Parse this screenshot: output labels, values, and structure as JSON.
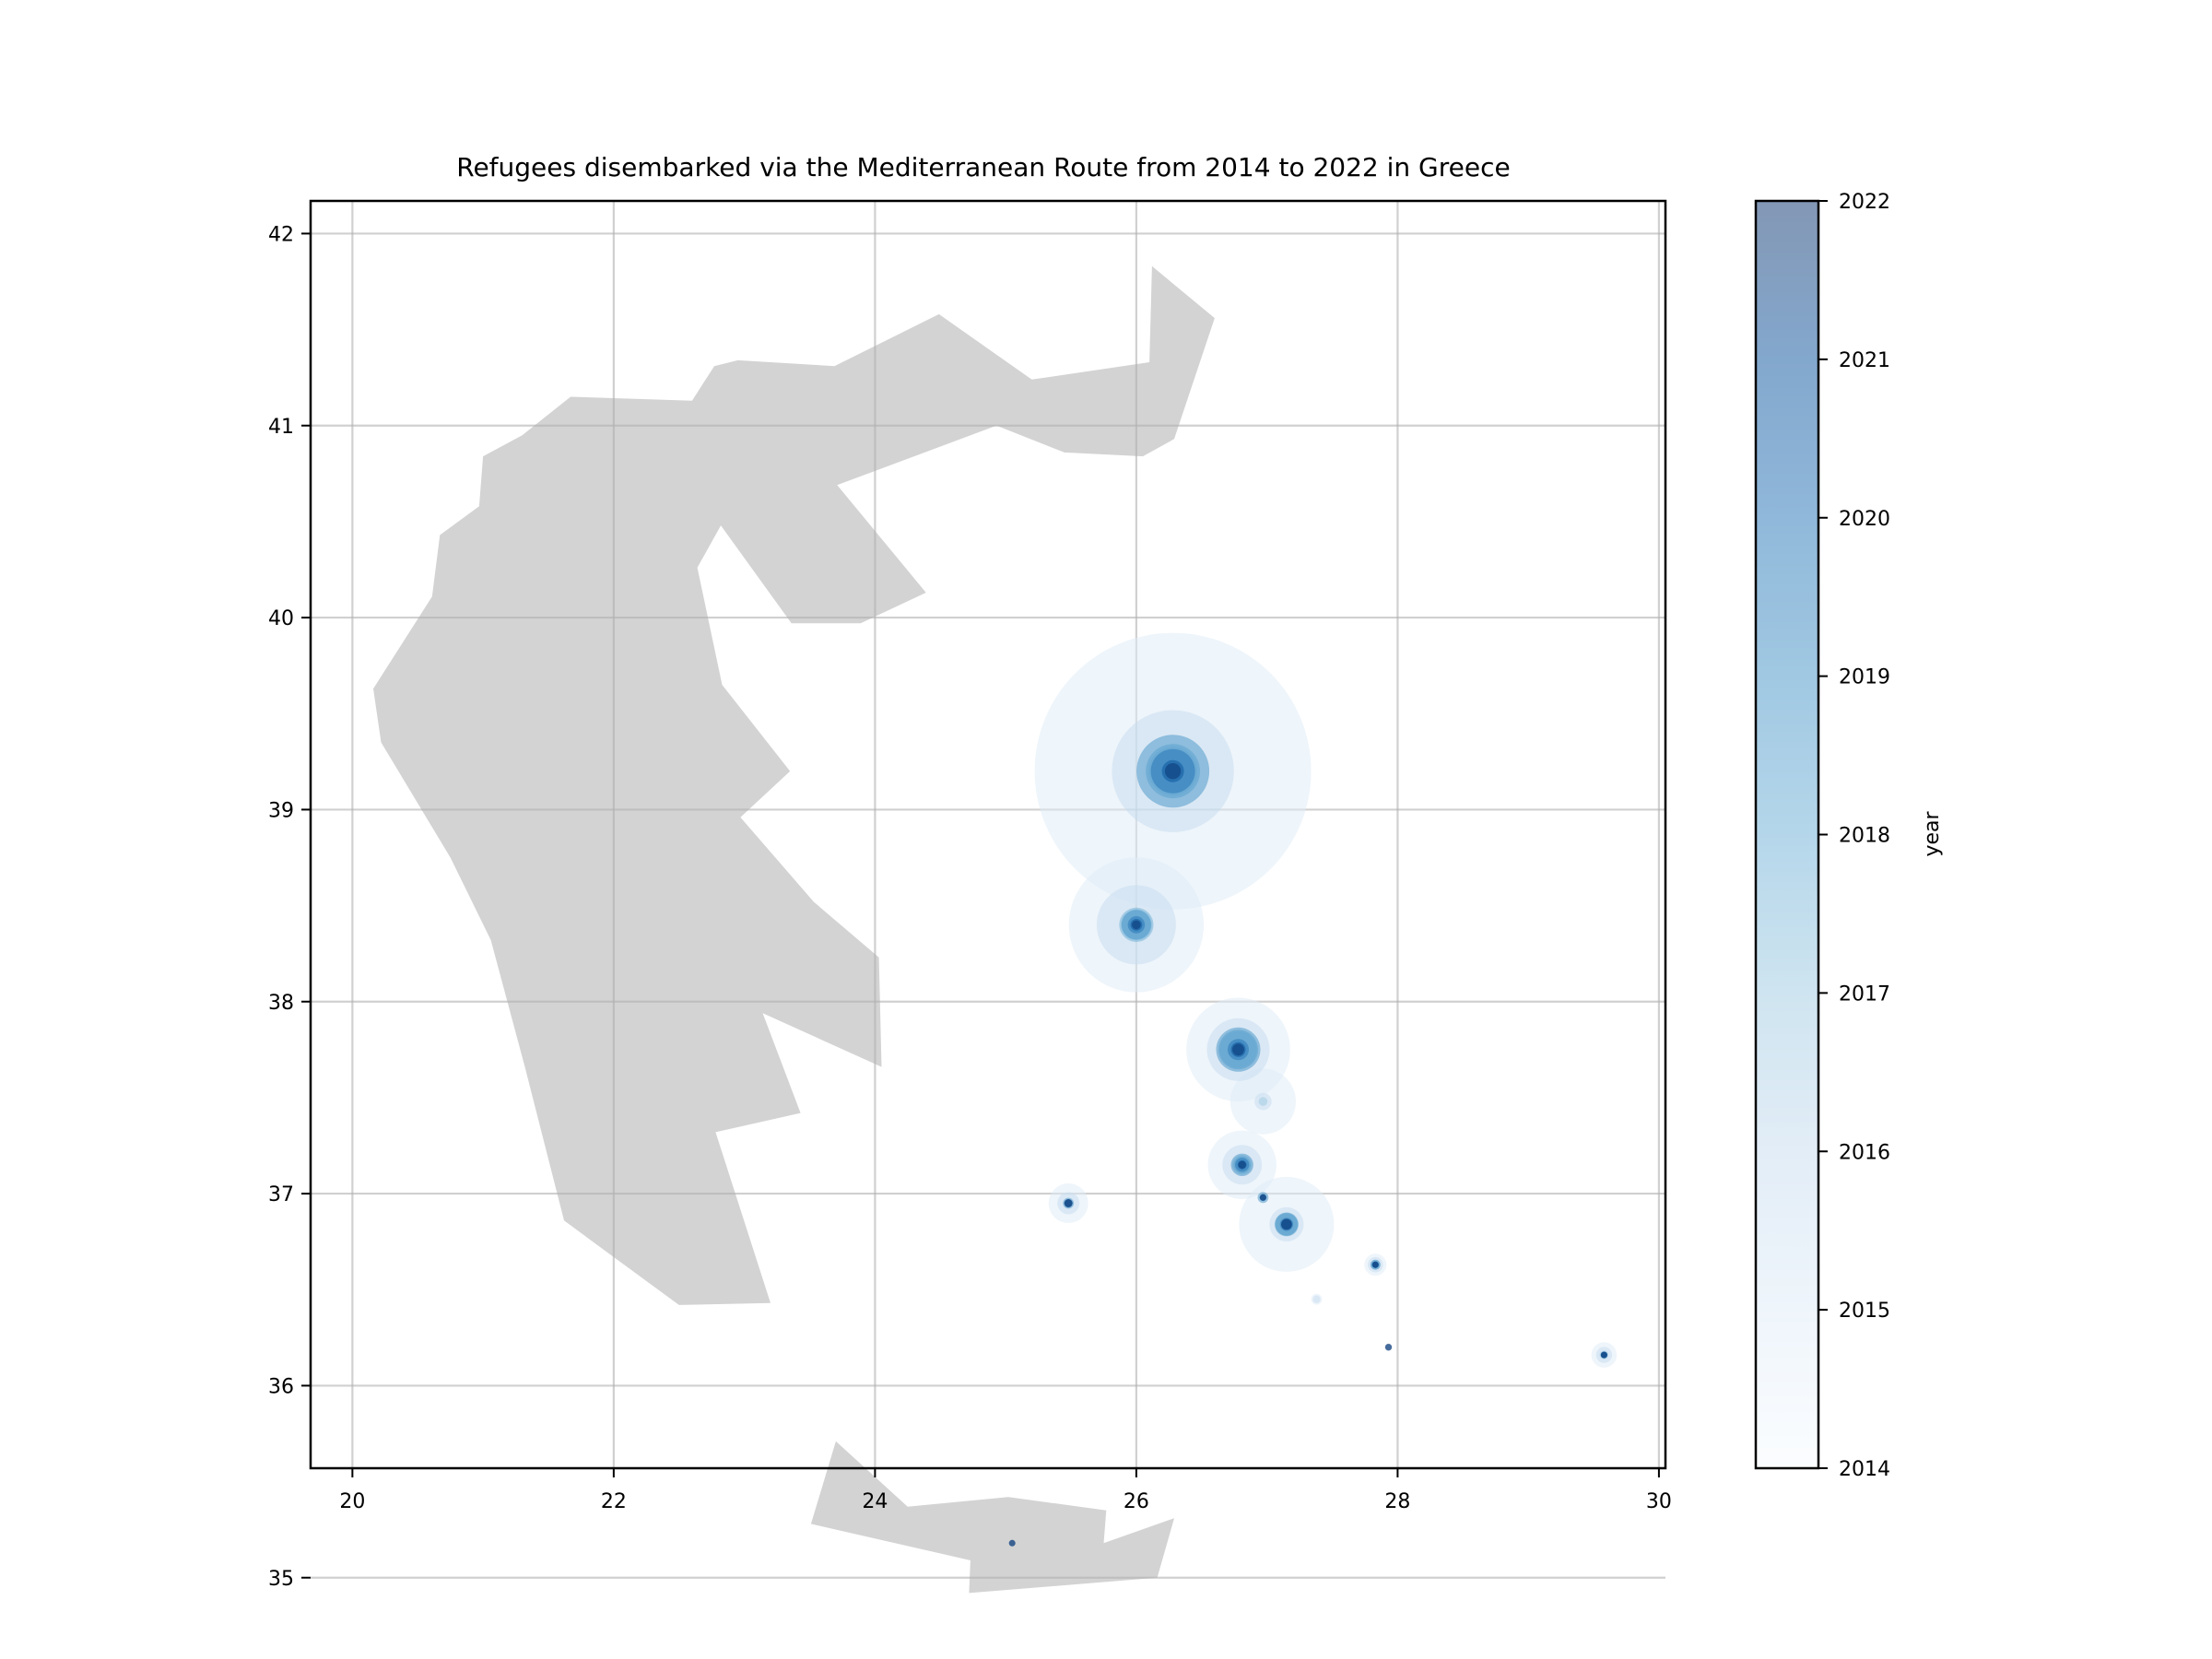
{
  "chart_data": {
    "type": "scatter",
    "title": "Refugees disembarked via the Mediterranean Route from 2014 to 2022 in Greece",
    "xlabel": "",
    "ylabel": "",
    "xlim": [
      19.68,
      30.05
    ],
    "ylim": [
      35.57,
      42.17
    ],
    "xticks": [
      20,
      22,
      24,
      26,
      28,
      30
    ],
    "yticks": [
      35,
      36,
      37,
      38,
      39,
      40,
      41,
      42
    ],
    "grid": true,
    "colorbar": {
      "label": "year",
      "range": [
        2014,
        2022
      ],
      "ticks": [
        2014,
        2015,
        2016,
        2017,
        2018,
        2019,
        2020,
        2021,
        2022
      ],
      "colormap": "Blues",
      "alpha": 0.5
    },
    "land_color": "#d3d3d3",
    "land": [
      [
        [
          20.16,
          39.63
        ],
        [
          20.22,
          39.35
        ],
        [
          20.75,
          38.75
        ],
        [
          21.06,
          38.32
        ],
        [
          21.32,
          37.66
        ],
        [
          21.62,
          36.86
        ],
        [
          22.5,
          36.42
        ],
        [
          23.2,
          36.43
        ],
        [
          22.78,
          37.32
        ],
        [
          23.43,
          37.42
        ],
        [
          23.14,
          37.94
        ],
        [
          24.05,
          37.66
        ],
        [
          24.03,
          38.23
        ],
        [
          23.53,
          38.52
        ],
        [
          22.97,
          38.96
        ],
        [
          23.35,
          39.2
        ],
        [
          22.83,
          39.65
        ],
        [
          22.64,
          40.26
        ],
        [
          22.82,
          40.48
        ],
        [
          23.36,
          39.97
        ],
        [
          23.89,
          39.97
        ],
        [
          24.39,
          40.13
        ],
        [
          23.71,
          40.69
        ],
        [
          24.93,
          41.0
        ],
        [
          25.45,
          40.86
        ],
        [
          26.05,
          40.84
        ],
        [
          26.29,
          40.93
        ],
        [
          26.6,
          41.56
        ],
        [
          26.12,
          41.83
        ],
        [
          26.1,
          41.33
        ],
        [
          25.2,
          41.24
        ],
        [
          24.49,
          41.58
        ],
        [
          23.69,
          41.31
        ],
        [
          22.95,
          41.34
        ],
        [
          22.77,
          41.31
        ],
        [
          22.6,
          41.13
        ],
        [
          21.67,
          41.15
        ],
        [
          21.3,
          40.95
        ],
        [
          21.0,
          40.84
        ],
        [
          20.97,
          40.58
        ],
        [
          20.67,
          40.43
        ],
        [
          20.61,
          40.11
        ],
        [
          20.16,
          39.63
        ]
      ],
      [
        [
          23.7,
          35.71
        ],
        [
          24.25,
          35.37
        ],
        [
          25.02,
          35.42
        ],
        [
          25.77,
          35.35
        ],
        [
          25.75,
          35.18
        ],
        [
          26.29,
          35.31
        ],
        [
          26.16,
          35.0
        ],
        [
          24.72,
          34.92
        ],
        [
          24.73,
          35.09
        ],
        [
          23.51,
          35.28
        ],
        [
          23.7,
          35.71
        ]
      ]
    ],
    "series": [
      {
        "year": 2015,
        "points": [
          {
            "x": 26.28,
            "y": 39.2,
            "value": 390000
          },
          {
            "x": 26.0,
            "y": 38.4,
            "value": 93000
          },
          {
            "x": 26.78,
            "y": 37.75,
            "value": 55000
          },
          {
            "x": 26.97,
            "y": 37.48,
            "value": 22000
          },
          {
            "x": 26.81,
            "y": 37.15,
            "value": 24000
          },
          {
            "x": 27.15,
            "y": 36.84,
            "value": 46000
          },
          {
            "x": 25.48,
            "y": 36.95,
            "value": 8000
          },
          {
            "x": 27.83,
            "y": 36.63,
            "value": 2500
          },
          {
            "x": 29.58,
            "y": 36.16,
            "value": 3300
          },
          {
            "x": 27.38,
            "y": 36.45,
            "value": 600
          }
        ]
      },
      {
        "year": 2016,
        "points": [
          {
            "x": 26.28,
            "y": 39.2,
            "value": 76000
          },
          {
            "x": 26.0,
            "y": 38.4,
            "value": 32000
          },
          {
            "x": 26.78,
            "y": 37.75,
            "value": 20000
          },
          {
            "x": 26.97,
            "y": 37.48,
            "value": 1500
          },
          {
            "x": 26.81,
            "y": 37.15,
            "value": 8000
          },
          {
            "x": 27.15,
            "y": 36.84,
            "value": 6000
          },
          {
            "x": 25.48,
            "y": 36.95,
            "value": 2500
          },
          {
            "x": 27.83,
            "y": 36.63,
            "value": 1200
          },
          {
            "x": 29.58,
            "y": 36.16,
            "value": 1300
          },
          {
            "x": 27.38,
            "y": 36.45,
            "value": 300
          }
        ]
      },
      {
        "year": 2017,
        "points": [
          {
            "x": 26.28,
            "y": 39.2,
            "value": 12000
          },
          {
            "x": 26.0,
            "y": 38.4,
            "value": 5000
          },
          {
            "x": 26.78,
            "y": 37.75,
            "value": 7000
          },
          {
            "x": 26.97,
            "y": 37.48,
            "value": 400
          },
          {
            "x": 26.81,
            "y": 37.15,
            "value": 2000
          },
          {
            "x": 27.15,
            "y": 36.84,
            "value": 3000
          },
          {
            "x": 27.83,
            "y": 36.63,
            "value": 500
          },
          {
            "x": 29.58,
            "y": 36.16,
            "value": 400
          }
        ]
      },
      {
        "year": 2018,
        "points": [
          {
            "x": 26.28,
            "y": 39.2,
            "value": 15000
          },
          {
            "x": 26.0,
            "y": 38.4,
            "value": 6000
          },
          {
            "x": 26.78,
            "y": 37.75,
            "value": 8000
          },
          {
            "x": 26.81,
            "y": 37.15,
            "value": 1500
          },
          {
            "x": 27.15,
            "y": 36.84,
            "value": 2500
          },
          {
            "x": 27.83,
            "y": 36.63,
            "value": 300
          },
          {
            "x": 29.58,
            "y": 36.16,
            "value": 250
          }
        ]
      },
      {
        "year": 2019,
        "points": [
          {
            "x": 26.28,
            "y": 39.2,
            "value": 27000
          },
          {
            "x": 26.0,
            "y": 38.4,
            "value": 4500
          },
          {
            "x": 26.78,
            "y": 37.75,
            "value": 10000
          },
          {
            "x": 26.81,
            "y": 37.15,
            "value": 2600
          },
          {
            "x": 27.15,
            "y": 36.84,
            "value": 2800
          },
          {
            "x": 26.97,
            "y": 36.98,
            "value": 600
          },
          {
            "x": 27.83,
            "y": 36.63,
            "value": 500
          },
          {
            "x": 25.48,
            "y": 36.95,
            "value": 600
          },
          {
            "x": 29.58,
            "y": 36.16,
            "value": 200
          }
        ]
      },
      {
        "year": 2020,
        "points": [
          {
            "x": 26.28,
            "y": 39.2,
            "value": 10000
          },
          {
            "x": 26.0,
            "y": 38.4,
            "value": 1500
          },
          {
            "x": 26.78,
            "y": 37.75,
            "value": 2300
          },
          {
            "x": 26.81,
            "y": 37.15,
            "value": 1000
          },
          {
            "x": 27.15,
            "y": 36.84,
            "value": 900
          },
          {
            "x": 26.97,
            "y": 36.98,
            "value": 250
          },
          {
            "x": 27.83,
            "y": 36.63,
            "value": 150
          },
          {
            "x": 25.48,
            "y": 36.95,
            "value": 350
          },
          {
            "x": 29.58,
            "y": 36.16,
            "value": 120
          }
        ]
      },
      {
        "year": 2021,
        "points": [
          {
            "x": 26.28,
            "y": 39.2,
            "value": 2500
          },
          {
            "x": 26.0,
            "y": 38.4,
            "value": 700
          },
          {
            "x": 26.78,
            "y": 37.75,
            "value": 1100
          },
          {
            "x": 26.81,
            "y": 37.15,
            "value": 420
          },
          {
            "x": 27.15,
            "y": 36.84,
            "value": 600
          },
          {
            "x": 26.97,
            "y": 36.98,
            "value": 120
          },
          {
            "x": 27.83,
            "y": 36.63,
            "value": 80
          },
          {
            "x": 25.48,
            "y": 36.95,
            "value": 300
          },
          {
            "x": 29.58,
            "y": 36.16,
            "value": 70
          },
          {
            "x": 27.93,
            "y": 36.2,
            "value": 100
          },
          {
            "x": 25.05,
            "y": 35.18,
            "value": 80
          }
        ]
      },
      {
        "year": 2022,
        "points": [
          {
            "x": 26.28,
            "y": 39.2,
            "value": 1300
          },
          {
            "x": 26.0,
            "y": 38.4,
            "value": 400
          },
          {
            "x": 26.78,
            "y": 37.75,
            "value": 700
          },
          {
            "x": 26.81,
            "y": 37.15,
            "value": 300
          },
          {
            "x": 27.15,
            "y": 36.84,
            "value": 600
          },
          {
            "x": 26.97,
            "y": 36.98,
            "value": 90
          },
          {
            "x": 27.83,
            "y": 36.63,
            "value": 30
          },
          {
            "x": 25.48,
            "y": 36.95,
            "value": 350
          },
          {
            "x": 29.58,
            "y": 36.16,
            "value": 40
          },
          {
            "x": 27.93,
            "y": 36.2,
            "value": 250
          },
          {
            "x": 25.05,
            "y": 35.18,
            "value": 200
          }
        ]
      }
    ]
  }
}
